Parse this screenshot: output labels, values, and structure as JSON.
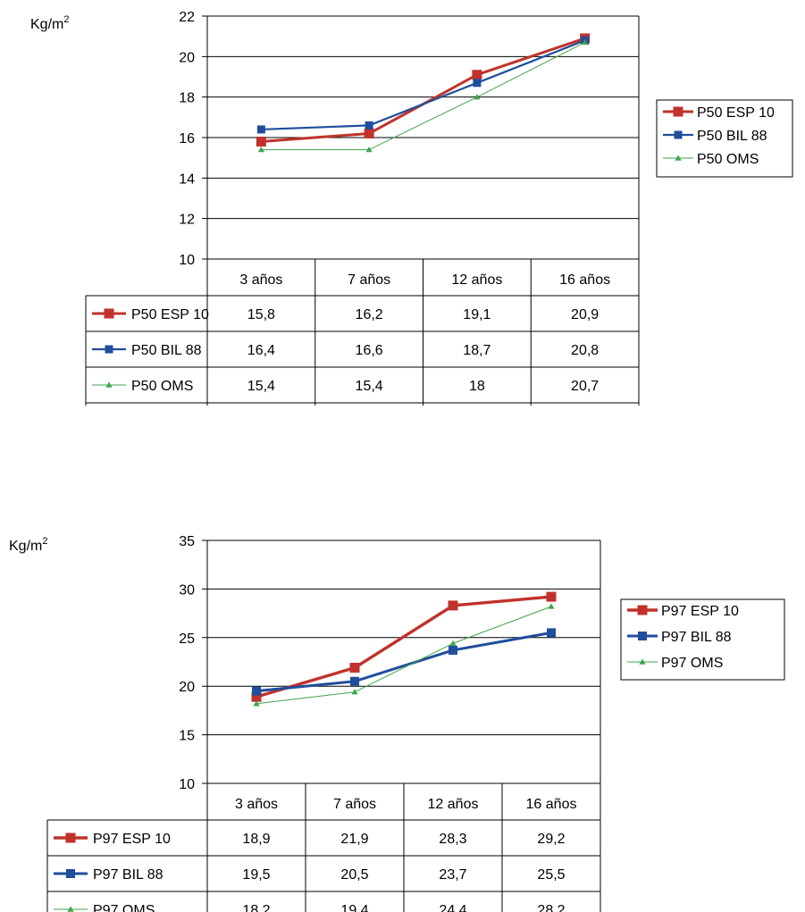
{
  "chart_data": [
    {
      "type": "line",
      "ylabel": "Kg/m",
      "ylabel_sup": "2",
      "categories": [
        "3 años",
        "7 años",
        "12 años",
        "16 años"
      ],
      "ylim": [
        10,
        22
      ],
      "yticks": [
        "10",
        "12",
        "14",
        "16",
        "18",
        "20",
        "22"
      ],
      "grid": true,
      "legend_position": "right",
      "series": [
        {
          "name": "P50 ESP 10",
          "values": [
            15.8,
            16.2,
            19.1,
            20.9
          ],
          "labels": [
            "15,8",
            "16,2",
            "19,1",
            "20,9"
          ],
          "color": "#c0322b",
          "marker": "square"
        },
        {
          "name": "P50 BIL 88",
          "values": [
            16.4,
            16.6,
            18.7,
            20.8
          ],
          "labels": [
            "16,4",
            "16,6",
            "18,7",
            "20,8"
          ],
          "color": "#1f4e9b",
          "marker": "square"
        },
        {
          "name": "P50 OMS",
          "values": [
            15.4,
            15.4,
            18,
            20.7
          ],
          "labels": [
            "15,4",
            "15,4",
            "18",
            "20,7"
          ],
          "color": "#3ea64a",
          "marker": "triangle"
        }
      ]
    },
    {
      "type": "line",
      "ylabel": "Kg/m",
      "ylabel_sup": "2",
      "categories": [
        "3 años",
        "7 años",
        "12 años",
        "16 años"
      ],
      "ylim": [
        10,
        35
      ],
      "yticks": [
        "10",
        "15",
        "20",
        "25",
        "30",
        "35"
      ],
      "grid": true,
      "legend_position": "right",
      "series": [
        {
          "name": "P97 ESP 10",
          "values": [
            18.9,
            21.9,
            28.3,
            29.2
          ],
          "labels": [
            "18,9",
            "21,9",
            "28,3",
            "29,2"
          ],
          "color": "#c0322b",
          "marker": "square"
        },
        {
          "name": "P97 BIL 88",
          "values": [
            19.5,
            20.5,
            23.7,
            25.5
          ],
          "labels": [
            "19,5",
            "20,5",
            "23,7",
            "25,5"
          ],
          "color": "#1f4e9b",
          "marker": "square"
        },
        {
          "name": "P97 OMS",
          "values": [
            18.2,
            19.4,
            24.4,
            28.2
          ],
          "labels": [
            "18,2",
            "19,4",
            "24,4",
            "28,2"
          ],
          "color": "#3ea64a",
          "marker": "triangle"
        }
      ]
    }
  ]
}
